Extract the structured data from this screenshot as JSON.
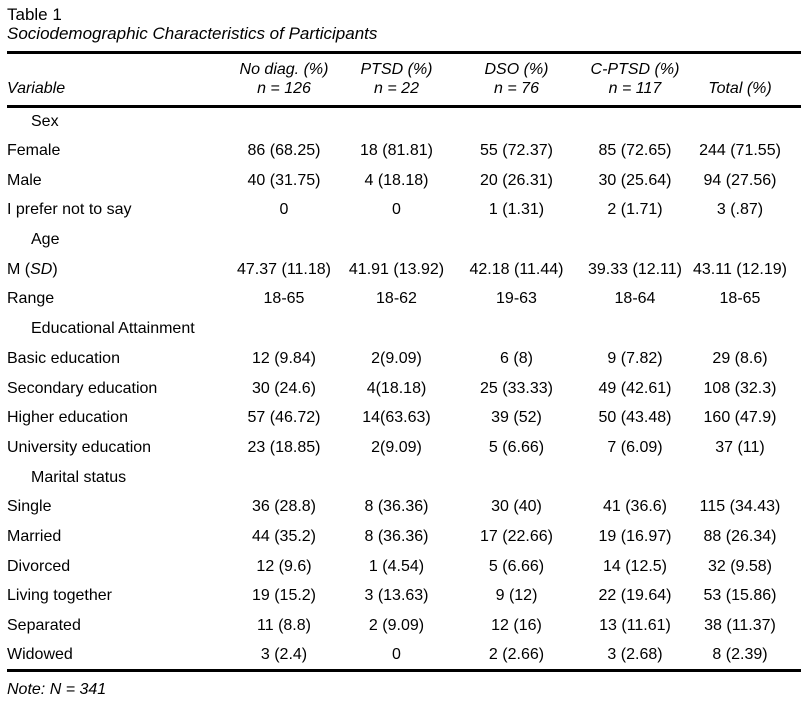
{
  "colors": {
    "text": "#000000",
    "background": "#ffffff",
    "rule": "#000000"
  },
  "table": {
    "number": "Table 1",
    "title": "Sociodemographic Characteristics of Participants",
    "note": "Note: N = 341",
    "columns": [
      {
        "line1": "",
        "line2": "Variable"
      },
      {
        "line1": "No diag. (%)",
        "line2": "n = 126"
      },
      {
        "line1": "PTSD (%)",
        "line2": "n = 22"
      },
      {
        "line1": "DSO (%)",
        "line2": "n = 76"
      },
      {
        "line1": "C-PTSD (%)",
        "line2": "n = 117"
      },
      {
        "line1": "",
        "line2": "Total (%)"
      }
    ],
    "rows": [
      {
        "type": "section",
        "label": "Sex"
      },
      {
        "type": "data",
        "label": "Female",
        "values": [
          "86 (68.25)",
          "18 (81.81)",
          "55 (72.37)",
          "85 (72.65)",
          "244 (71.55)"
        ]
      },
      {
        "type": "data",
        "label": "Male",
        "values": [
          "40 (31.75)",
          "4 (18.18)",
          "20 (26.31)",
          "30 (25.64)",
          "94 (27.56)"
        ]
      },
      {
        "type": "data",
        "label": "I prefer not to say",
        "values": [
          "0",
          "0",
          "1 (1.31)",
          "2 (1.71)",
          "3 (.87)"
        ]
      },
      {
        "type": "section",
        "label": "Age"
      },
      {
        "type": "data",
        "label": "M (SD)",
        "label_runs": [
          {
            "text": "M (",
            "italic": false
          },
          {
            "text": "SD",
            "italic": true
          },
          {
            "text": ")",
            "italic": false
          }
        ],
        "values": [
          "47.37 (11.18)",
          "41.91 (13.92)",
          "42.18 (11.44)",
          "39.33 (12.11)",
          "43.11 (12.19)"
        ]
      },
      {
        "type": "data",
        "label": "Range",
        "values": [
          "18-65",
          "18-62",
          "19-63",
          "18-64",
          "18-65"
        ]
      },
      {
        "type": "section",
        "label": "Educational Attainment"
      },
      {
        "type": "data",
        "label": "Basic education",
        "values": [
          "12 (9.84)",
          "2(9.09)",
          "6 (8)",
          "9 (7.82)",
          "29 (8.6)"
        ]
      },
      {
        "type": "data",
        "label": "Secondary education",
        "values": [
          "30 (24.6)",
          "4(18.18)",
          "25 (33.33)",
          "49 (42.61)",
          "108 (32.3)"
        ]
      },
      {
        "type": "data",
        "label": "Higher education",
        "values": [
          "57 (46.72)",
          "14(63.63)",
          "39 (52)",
          "50 (43.48)",
          "160 (47.9)"
        ]
      },
      {
        "type": "data",
        "label": "University education",
        "values": [
          "23 (18.85)",
          "2(9.09)",
          "5 (6.66)",
          "7 (6.09)",
          "37 (11)"
        ]
      },
      {
        "type": "section",
        "label": "Marital status"
      },
      {
        "type": "data",
        "label": "Single",
        "values": [
          "36 (28.8)",
          "8 (36.36)",
          "30 (40)",
          "41 (36.6)",
          "115 (34.43)"
        ]
      },
      {
        "type": "data",
        "label": "Married",
        "values": [
          "44 (35.2)",
          "8 (36.36)",
          "17 (22.66)",
          "19 (16.97)",
          "88 (26.34)"
        ]
      },
      {
        "type": "data",
        "label": "Divorced",
        "values": [
          "12 (9.6)",
          "1 (4.54)",
          "5 (6.66)",
          "14 (12.5)",
          "32 (9.58)"
        ]
      },
      {
        "type": "data",
        "label": "Living together",
        "values": [
          "19 (15.2)",
          "3 (13.63)",
          "9 (12)",
          "22 (19.64)",
          "53 (15.86)"
        ]
      },
      {
        "type": "data",
        "label": "Separated",
        "values": [
          "11 (8.8)",
          "2 (9.09)",
          "12 (16)",
          "13 (11.61)",
          "38 (11.37)"
        ]
      },
      {
        "type": "data",
        "label": "Widowed",
        "values": [
          "3 (2.4)",
          "0",
          "2 (2.66)",
          "3 (2.68)",
          "8 (2.39)"
        ]
      }
    ]
  }
}
